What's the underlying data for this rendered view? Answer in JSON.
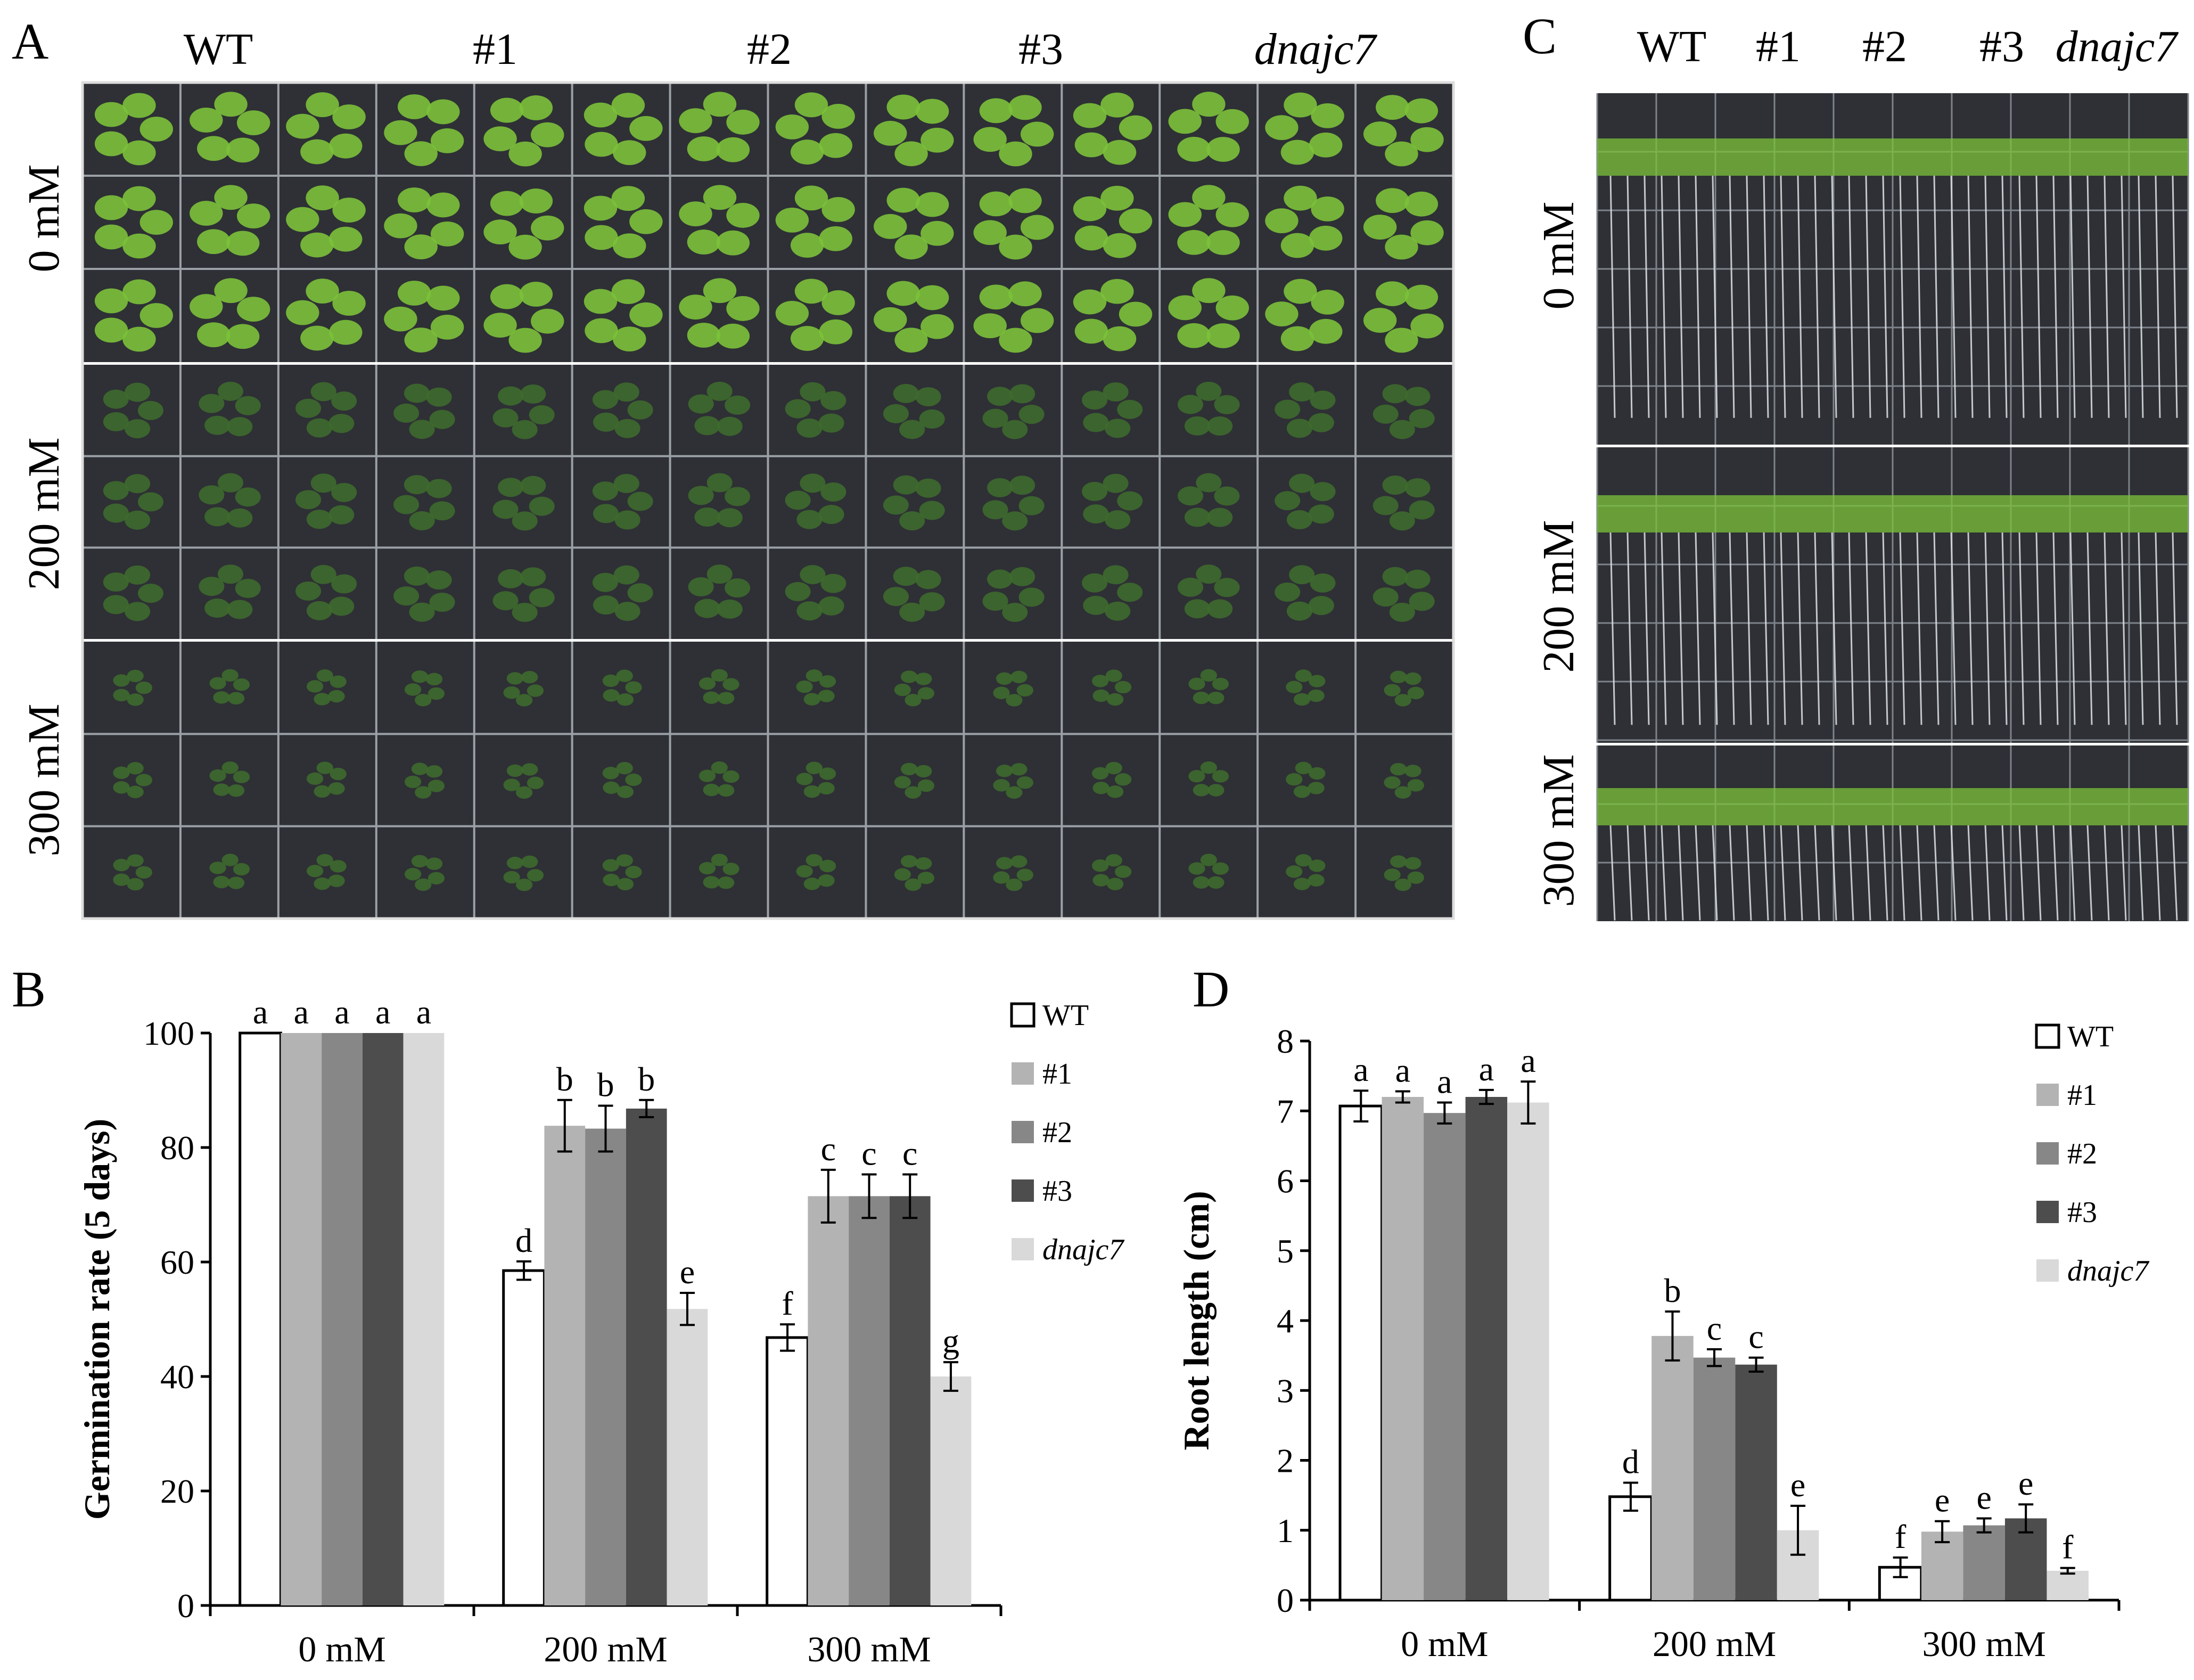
{
  "panels": {
    "A": {
      "letter": "A",
      "genotypes": [
        "WT",
        "#1",
        "#2",
        "#3",
        "dnajc7"
      ],
      "treatments": [
        "0 mM",
        "200 mM",
        "300 mM"
      ],
      "photo_content": "seedling plates (top view)"
    },
    "C": {
      "letter": "C",
      "genotypes": [
        "WT",
        "#1",
        "#2",
        "#3",
        "dnajc7"
      ],
      "treatments": [
        "0 mM",
        "200 mM",
        "300 mM"
      ],
      "photo_content": "vertical plates showing roots"
    }
  },
  "colors": {
    "WT": "#ffffff",
    "#1": "#b3b3b3",
    "#2": "#878787",
    "#3": "#4d4d4d",
    "dnajc7": "#d9d9d9",
    "axis": "#000000",
    "plate_bg": "#2e3035",
    "leaf_healthy": "#7cc13a",
    "leaf_stressed": "#3e6a2e"
  },
  "chart_data": [
    {
      "panel": "B",
      "type": "bar",
      "ylabel": "Germination rate (5 days)",
      "xlabel": "",
      "ylim": [
        0,
        100
      ],
      "yticks": [
        0,
        20,
        40,
        60,
        80,
        100
      ],
      "categories": [
        "0 mM",
        "200 mM",
        "300 mM"
      ],
      "legend_position": "right",
      "series": [
        {
          "name": "WT",
          "values": [
            100,
            58.5,
            46.8
          ],
          "errors": [
            0,
            1.6,
            2.3
          ],
          "letters": [
            "a",
            "d",
            "f"
          ]
        },
        {
          "name": "#1",
          "values": [
            100,
            83.8,
            71.5
          ],
          "errors": [
            0,
            4.5,
            4.6
          ],
          "letters": [
            "a",
            "b",
            "c"
          ]
        },
        {
          "name": "#2",
          "values": [
            100,
            83.3,
            71.5
          ],
          "errors": [
            0,
            4.0,
            3.8
          ],
          "letters": [
            "a",
            "b",
            "c"
          ]
        },
        {
          "name": "#3",
          "values": [
            100,
            86.8,
            71.5
          ],
          "errors": [
            0,
            1.5,
            3.8
          ],
          "letters": [
            "a",
            "b",
            "c"
          ]
        },
        {
          "name": "dnajc7",
          "values": [
            100,
            51.8,
            40.0
          ],
          "errors": [
            0,
            2.8,
            2.5
          ],
          "letters": [
            "a",
            "e",
            "g"
          ]
        }
      ]
    },
    {
      "panel": "D",
      "type": "bar",
      "ylabel": "Root length (cm)",
      "xlabel": "",
      "ylim": [
        0,
        8
      ],
      "yticks": [
        0,
        1,
        2,
        3,
        4,
        5,
        6,
        7,
        8
      ],
      "categories": [
        "0 mM",
        "200 mM",
        "300 mM"
      ],
      "legend_position": "right",
      "series": [
        {
          "name": "WT",
          "values": [
            7.07,
            1.48,
            0.47
          ],
          "errors": [
            0.22,
            0.2,
            0.14
          ],
          "letters": [
            "a",
            "d",
            "f"
          ]
        },
        {
          "name": "#1",
          "values": [
            7.2,
            3.78,
            0.98
          ],
          "errors": [
            0.08,
            0.35,
            0.15
          ],
          "letters": [
            "a",
            "b",
            "e"
          ]
        },
        {
          "name": "#2",
          "values": [
            6.97,
            3.47,
            1.07
          ],
          "errors": [
            0.15,
            0.12,
            0.1
          ],
          "letters": [
            "a",
            "c",
            "e"
          ]
        },
        {
          "name": "#3",
          "values": [
            7.2,
            3.37,
            1.17
          ],
          "errors": [
            0.1,
            0.1,
            0.2
          ],
          "letters": [
            "a",
            "c",
            "e"
          ]
        },
        {
          "name": "dnajc7",
          "values": [
            7.12,
            1.0,
            0.42
          ],
          "errors": [
            0.3,
            0.35,
            0.04
          ],
          "letters": [
            "a",
            "e",
            "f"
          ]
        }
      ]
    }
  ]
}
